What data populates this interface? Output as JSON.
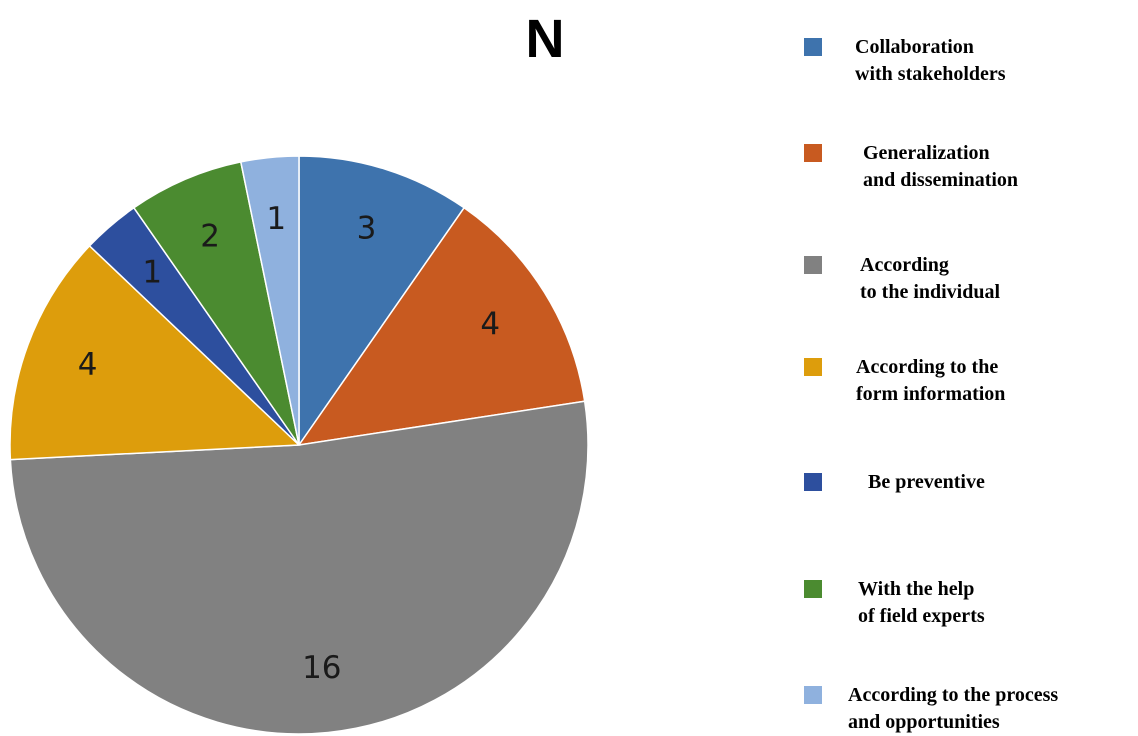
{
  "chart_data": {
    "type": "pie",
    "title": "N",
    "start_angle_deg": 0,
    "direction": "clockwise",
    "legend_position": "right",
    "slices": [
      {
        "label": "Collaboration\nwith stakeholders",
        "value": 3,
        "color": "#3e73ad"
      },
      {
        "label": "Generalization\nand dissemination",
        "value": 4,
        "color": "#c85a20"
      },
      {
        "label": "According\nto the individual",
        "value": 16,
        "color": "#818181"
      },
      {
        "label": "According to the\nform information",
        "value": 4,
        "color": "#dd9d0c"
      },
      {
        "label": "Be preventive",
        "value": 1,
        "color": "#2d4f9e"
      },
      {
        "label": "With the help\nof field experts",
        "value": 2,
        "color": "#4b8b30"
      },
      {
        "label": "According to the process\nand opportunities",
        "value": 1,
        "color": "#8fb1de"
      }
    ]
  }
}
